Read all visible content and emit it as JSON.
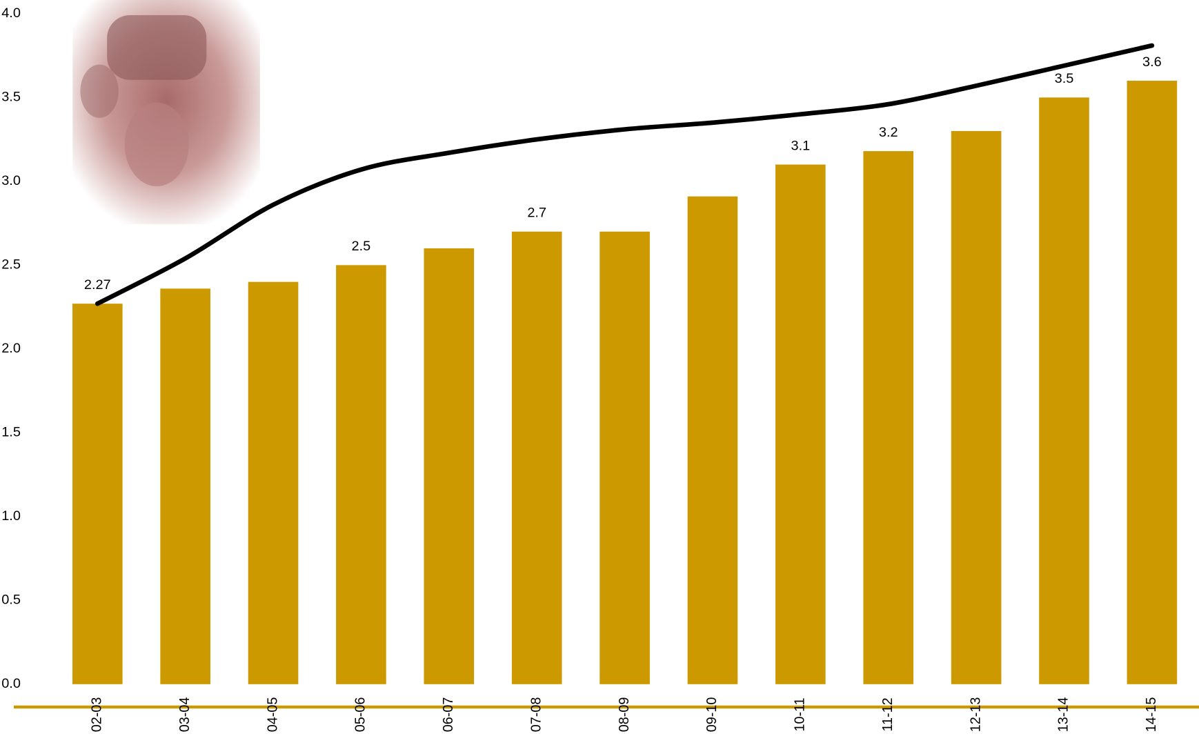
{
  "chart_data": {
    "type": "bar",
    "categories": [
      "02-03",
      "03-04",
      "04-05",
      "05-06",
      "06-07",
      "07-08",
      "08-09",
      "09-10",
      "10-11",
      "11-12",
      "12-13",
      "13-14",
      "14-15"
    ],
    "values": [
      2.27,
      2.36,
      2.4,
      2.5,
      2.6,
      2.7,
      2.7,
      2.91,
      3.1,
      3.18,
      3.3,
      3.5,
      3.6
    ],
    "value_labels": [
      "2.27",
      null,
      null,
      "2.5",
      null,
      "2.7",
      null,
      null,
      "3.1",
      "3.2",
      null,
      "3.5",
      "3.6"
    ],
    "color": "#cc9900",
    "trend_line": {
      "color": "#000000",
      "values": [
        2.27,
        2.54,
        2.86,
        3.07,
        3.17,
        3.25,
        3.31,
        3.35,
        3.4,
        3.46,
        3.57,
        3.69,
        3.81
      ]
    },
    "ylim": [
      0,
      4
    ],
    "yticks": [
      {
        "value": 0,
        "label": "0.0"
      },
      {
        "value": 0.5,
        "label": "0.5"
      },
      {
        "value": 1,
        "label": "1.0"
      },
      {
        "value": 1.5,
        "label": "1.5"
      },
      {
        "value": 2,
        "label": "2.0"
      },
      {
        "value": 2.5,
        "label": "2.5"
      },
      {
        "value": 3,
        "label": "3.0"
      },
      {
        "value": 3.5,
        "label": "3.5"
      },
      {
        "value": 4,
        "label": "4.0"
      }
    ],
    "grid": false
  }
}
